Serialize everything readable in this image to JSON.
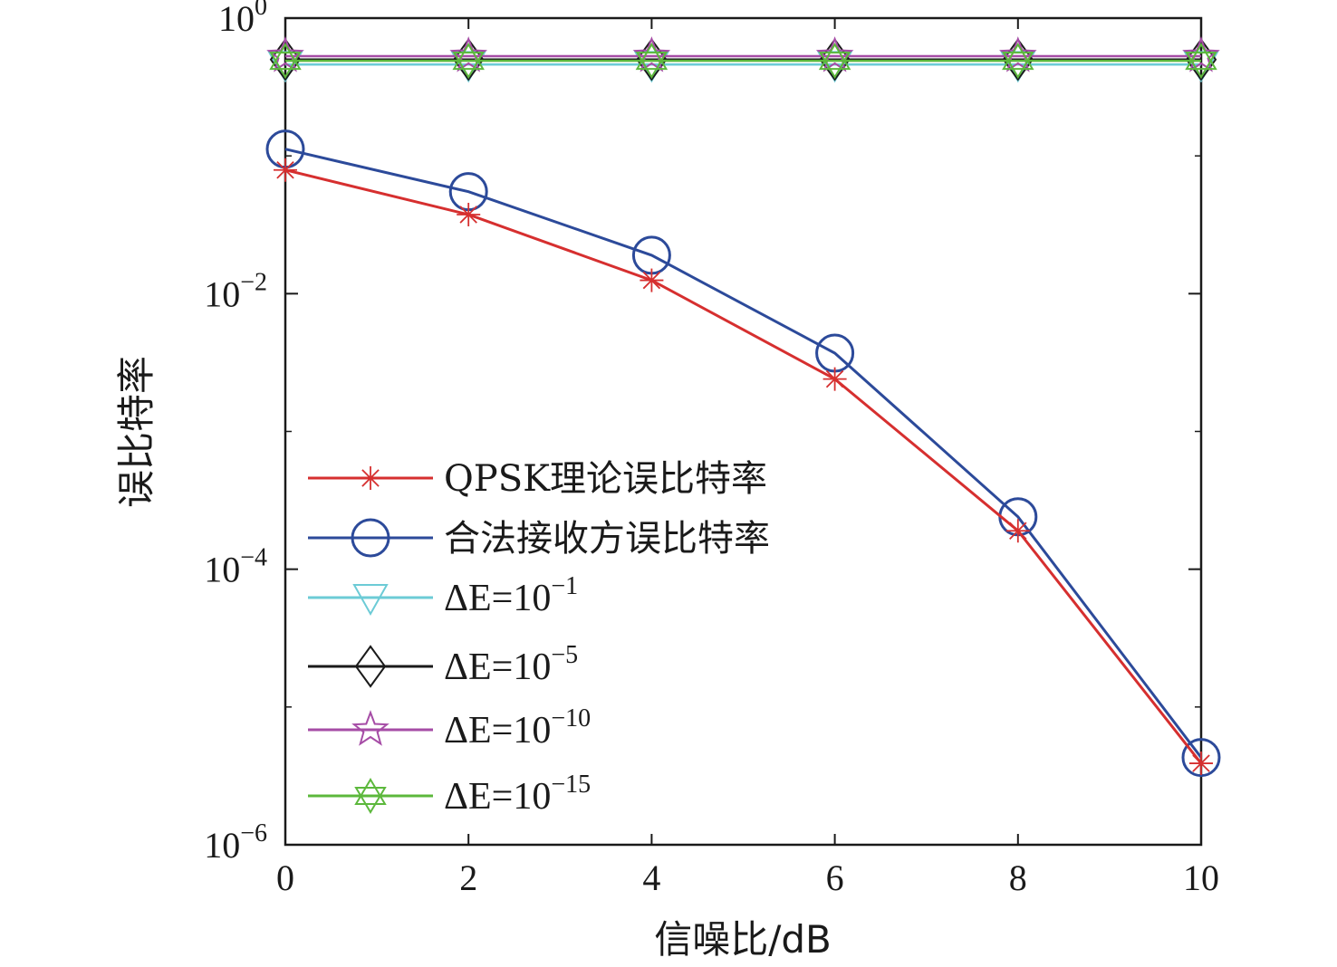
{
  "chart_data": {
    "type": "line",
    "xlabel": "信噪比/dB",
    "ylabel": "误比特率",
    "x": [
      0,
      2,
      4,
      6,
      8,
      10
    ],
    "xlim": [
      0,
      10
    ],
    "ylim": [
      1e-06,
      1
    ],
    "yscale": "log",
    "xticks": [
      "0",
      "2",
      "4",
      "6",
      "8",
      "10"
    ],
    "yticks": [
      {
        "value": 1,
        "base": "10",
        "exp": "0"
      },
      {
        "value": 0.01,
        "base": "10",
        "exp": "−2"
      },
      {
        "value": 0.0001,
        "base": "10",
        "exp": "−4"
      },
      {
        "value": 1e-06,
        "base": "10",
        "exp": "−6"
      }
    ],
    "legend_position": "lower-left",
    "series": [
      {
        "name": "QPSK理论误比特率",
        "color": "#d62f2f",
        "marker": "star",
        "values": [
          0.079,
          0.0375,
          0.0125,
          0.0024,
          0.00019,
          3.9e-06
        ]
      },
      {
        "name": "合法接收方误比特率",
        "color": "#2c4a9a",
        "marker": "circle",
        "values": [
          0.112,
          0.055,
          0.019,
          0.0037,
          0.00024,
          4.3e-06
        ]
      },
      {
        "name": "ΔE=10−1",
        "legend_base": "ΔE=10",
        "legend_exp": "−1",
        "color": "#6ccbd6",
        "marker": "triangle-down",
        "values": [
          0.46,
          0.46,
          0.46,
          0.46,
          0.46,
          0.46
        ]
      },
      {
        "name": "ΔE=10−5",
        "legend_base": "ΔE=10",
        "legend_exp": "−5",
        "color": "#1a1a1a",
        "marker": "diamond",
        "values": [
          0.5,
          0.5,
          0.5,
          0.5,
          0.5,
          0.5
        ]
      },
      {
        "name": "ΔE=10−10",
        "legend_base": "ΔE=10",
        "legend_exp": "−10",
        "color": "#a64ca6",
        "marker": "star5",
        "values": [
          0.53,
          0.53,
          0.53,
          0.53,
          0.53,
          0.53
        ]
      },
      {
        "name": "ΔE=10−15",
        "legend_base": "ΔE=10",
        "legend_exp": "−15",
        "color": "#5cb83c",
        "marker": "hexagram",
        "values": [
          0.49,
          0.49,
          0.49,
          0.49,
          0.49,
          0.49
        ]
      }
    ]
  }
}
